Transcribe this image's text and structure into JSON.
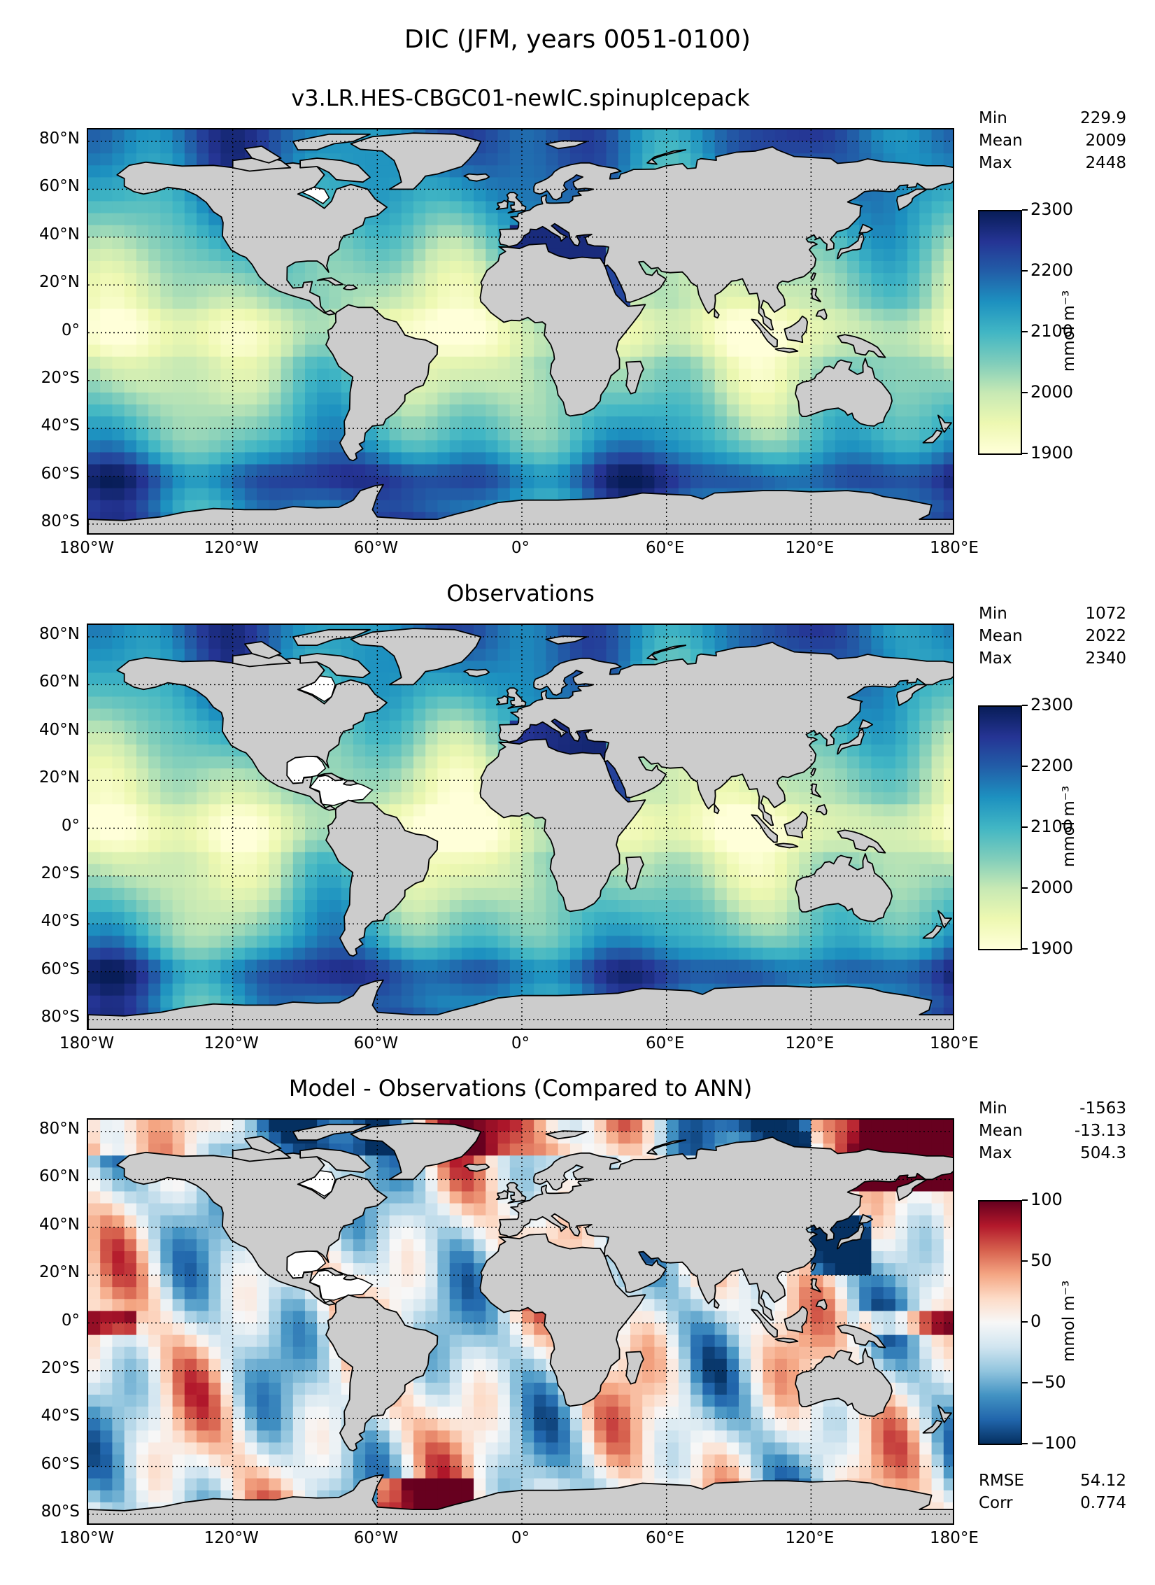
{
  "figure": {
    "title": "DIC (JFM, years 0051-0100)"
  },
  "colors": {
    "land": "#cccccc",
    "gridline": "#000000",
    "sequential": [
      "#ffffd9",
      "#edf8b1",
      "#c7e9b4",
      "#7fcdbb",
      "#41b6c4",
      "#1d91c0",
      "#225ea8",
      "#253494",
      "#081d58"
    ],
    "diverging": [
      "#053061",
      "#2166ac",
      "#4393c3",
      "#92c5de",
      "#d1e5f0",
      "#f7f7f7",
      "#fddbc7",
      "#f4a582",
      "#d6604d",
      "#b2182b",
      "#67001f"
    ]
  },
  "axes": {
    "lat_labels": [
      "80°N",
      "60°N",
      "40°N",
      "20°N",
      "0°",
      "20°S",
      "40°S",
      "60°S",
      "80°S"
    ],
    "lon_labels": [
      "180°W",
      "120°W",
      "60°W",
      "0°",
      "60°E",
      "120°E",
      "180°E"
    ]
  },
  "panels": [
    {
      "title": "v3.LR.HES-CBGC01-newIC.spinupIcepack",
      "stats": [
        {
          "label": "Min",
          "value": "229.9"
        },
        {
          "label": "Mean",
          "value": "2009"
        },
        {
          "label": "Max",
          "value": "2448"
        }
      ],
      "colorbar": {
        "ticks": [
          "2300",
          "2200",
          "2100",
          "2000",
          "1900"
        ],
        "unit": "mmol m⁻³"
      }
    },
    {
      "title": "Observations",
      "stats": [
        {
          "label": "Min",
          "value": "1072"
        },
        {
          "label": "Mean",
          "value": "2022"
        },
        {
          "label": "Max",
          "value": "2340"
        }
      ],
      "colorbar": {
        "ticks": [
          "2300",
          "2200",
          "2100",
          "2000",
          "1900"
        ],
        "unit": "mmol m⁻³"
      }
    },
    {
      "title": "Model - Observations (Compared to ANN)",
      "stats": [
        {
          "label": "Min",
          "value": "-1563"
        },
        {
          "label": "Mean",
          "value": "-13.13"
        },
        {
          "label": "Max",
          "value": "504.3"
        }
      ],
      "colorbar": {
        "ticks": [
          "100",
          "50",
          "0",
          "−50",
          "−100"
        ],
        "unit": "mmol m⁻³"
      },
      "extra_stats": [
        {
          "label": "RMSE",
          "value": "54.12"
        },
        {
          "label": "Corr",
          "value": "0.774"
        }
      ]
    }
  ],
  "chart_data": [
    {
      "type": "heatmap",
      "projection": "plate carree",
      "title": "v3.LR.HES-CBGC01-newIC.spinupIcepack",
      "xlim": [
        -180,
        180
      ],
      "ylim": [
        -85,
        85
      ],
      "x_ticks": [
        -180,
        -120,
        -60,
        0,
        60,
        120,
        180
      ],
      "y_ticks": [
        80,
        60,
        40,
        20,
        0,
        -20,
        -40,
        -60,
        -80
      ],
      "color_range": [
        1900,
        2300
      ],
      "colormap": "YlGnBu",
      "unit": "mmol m⁻³",
      "grid": true,
      "stats": {
        "min": 229.9,
        "mean": 2009,
        "max": 2448
      }
    },
    {
      "type": "heatmap",
      "projection": "plate carree",
      "title": "Observations",
      "xlim": [
        -180,
        180
      ],
      "ylim": [
        -85,
        85
      ],
      "x_ticks": [
        -180,
        -120,
        -60,
        0,
        60,
        120,
        180
      ],
      "y_ticks": [
        80,
        60,
        40,
        20,
        0,
        -20,
        -40,
        -60,
        -80
      ],
      "color_range": [
        1900,
        2300
      ],
      "colormap": "YlGnBu",
      "unit": "mmol m⁻³",
      "grid": true,
      "stats": {
        "min": 1072,
        "mean": 2022,
        "max": 2340
      }
    },
    {
      "type": "heatmap",
      "projection": "plate carree",
      "title": "Model - Observations (Compared to ANN)",
      "xlim": [
        -180,
        180
      ],
      "ylim": [
        -85,
        85
      ],
      "x_ticks": [
        -180,
        -120,
        -60,
        0,
        60,
        120,
        180
      ],
      "y_ticks": [
        80,
        60,
        40,
        20,
        0,
        -20,
        -40,
        -60,
        -80
      ],
      "color_range": [
        -100,
        100
      ],
      "colormap": "RdBu_r",
      "unit": "mmol m⁻³",
      "grid": true,
      "stats": {
        "min": -1563,
        "mean": -13.13,
        "max": 504.3,
        "rmse": 54.12,
        "corr": 0.774
      }
    }
  ]
}
